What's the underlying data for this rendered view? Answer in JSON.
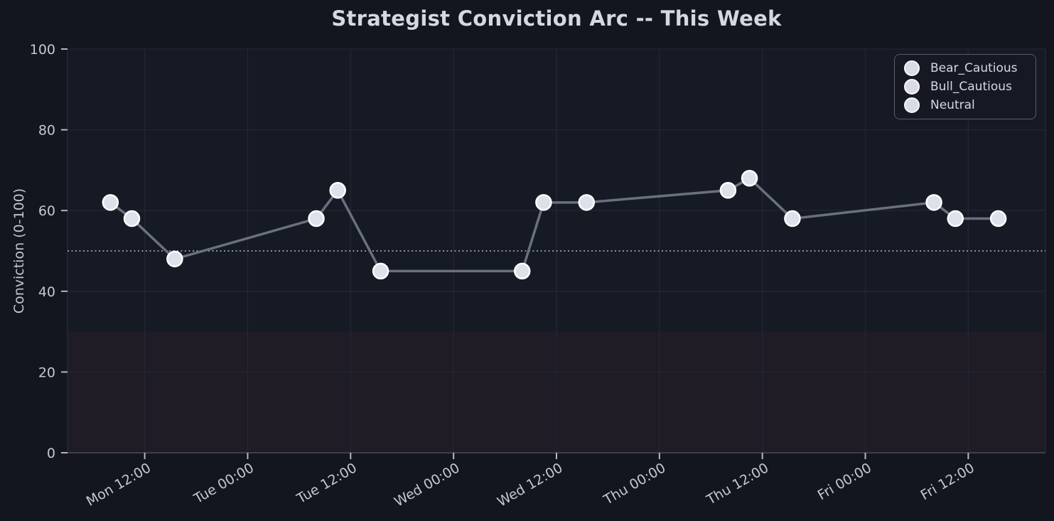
{
  "chart_data": {
    "type": "scatter",
    "title": "Strategist Conviction Arc -- This Week",
    "xlabel": "",
    "ylabel": "Conviction (0-100)",
    "ylim": [
      0,
      100
    ],
    "yticks": [
      0,
      20,
      40,
      60,
      80,
      100
    ],
    "xtick_labels": [
      "Mon 12:00",
      "Tue 00:00",
      "Tue 12:00",
      "Wed 00:00",
      "Wed 12:00",
      "Thu 00:00",
      "Thu 12:00",
      "Fri 00:00",
      "Fri 12:00"
    ],
    "xtick_hours": [
      12,
      24,
      36,
      48,
      60,
      72,
      84,
      96,
      108
    ],
    "xlim_hours": [
      3,
      117
    ],
    "grid": true,
    "legend_position": "upper right",
    "legend_labels": [
      "Bear_Cautious",
      "Bull_Cautious",
      "Neutral"
    ],
    "threshold_line": {
      "y": 50,
      "style": "dotted"
    },
    "shaded_band": {
      "ymin": 0,
      "ymax": 30
    },
    "points": [
      {
        "time": "Mon 08:00",
        "hour": 8,
        "value": 62,
        "label": "Bull_Cautious"
      },
      {
        "time": "Mon 10:30",
        "hour": 10.5,
        "value": 58,
        "label": "Neutral"
      },
      {
        "time": "Mon 15:30",
        "hour": 15.5,
        "value": 48,
        "label": "Bear_Cautious"
      },
      {
        "time": "Tue 08:00",
        "hour": 32,
        "value": 58,
        "label": "Neutral"
      },
      {
        "time": "Tue 10:30",
        "hour": 34.5,
        "value": 65,
        "label": "Bull_Cautious"
      },
      {
        "time": "Tue 15:30",
        "hour": 39.5,
        "value": 45,
        "label": "Bear_Cautious"
      },
      {
        "time": "Wed 08:00",
        "hour": 56,
        "value": 45,
        "label": "Bear_Cautious"
      },
      {
        "time": "Wed 10:30",
        "hour": 58.5,
        "value": 62,
        "label": "Bull_Cautious"
      },
      {
        "time": "Wed 15:30",
        "hour": 63.5,
        "value": 62,
        "label": "Bull_Cautious"
      },
      {
        "time": "Thu 08:00",
        "hour": 80,
        "value": 65,
        "label": "Bull_Cautious"
      },
      {
        "time": "Thu 10:30",
        "hour": 82.5,
        "value": 68,
        "label": "Bull_Cautious"
      },
      {
        "time": "Thu 15:30",
        "hour": 87.5,
        "value": 58,
        "label": "Neutral"
      },
      {
        "time": "Fri 08:00",
        "hour": 104,
        "value": 62,
        "label": "Bull_Cautious"
      },
      {
        "time": "Fri 10:30",
        "hour": 106.5,
        "value": 58,
        "label": "Neutral"
      },
      {
        "time": "Fri 15:30",
        "hour": 111.5,
        "value": 58,
        "label": "Neutral"
      }
    ]
  },
  "colors": {
    "figure_bg": "#13161e",
    "plot_bg": "#161a24",
    "band_fill": "#1f1c25",
    "grid": "#232734",
    "spine": "#262b37",
    "bottom_spine": "#3c414d",
    "tick_mark": "#b4b8c2",
    "tick_text": "#c3c7d1",
    "title_text": "#d5d8df",
    "line": "#6b7080",
    "threshold": "#8f939d",
    "marker_fill": "#dee1e9",
    "marker_edge": "#ffffff"
  }
}
